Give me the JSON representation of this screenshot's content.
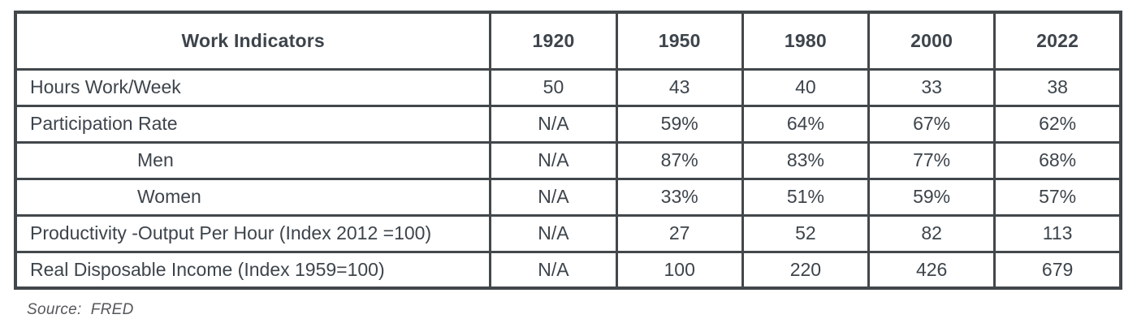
{
  "colors": {
    "text": "#3d444b",
    "border": "#42474b",
    "source_text": "#55575a",
    "background": "#ffffff"
  },
  "table": {
    "columns": [
      "Work Indicators",
      "1920",
      "1950",
      "1980",
      "2000",
      "2022"
    ],
    "rows": [
      {
        "label": "Hours Work/Week",
        "indent": false,
        "values": [
          "50",
          "43",
          "40",
          "33",
          "38"
        ]
      },
      {
        "label": "Participation Rate",
        "indent": false,
        "values": [
          "N/A",
          "59%",
          "64%",
          "67%",
          "62%"
        ]
      },
      {
        "label": "Men",
        "indent": true,
        "values": [
          "N/A",
          "87%",
          "83%",
          "77%",
          "68%"
        ]
      },
      {
        "label": "Women",
        "indent": true,
        "values": [
          "N/A",
          "33%",
          "51%",
          "59%",
          "57%"
        ]
      },
      {
        "label": "Productivity -Output Per Hour (Index 2012 =100)",
        "indent": false,
        "values": [
          "N/A",
          "27",
          "52",
          "82",
          "113"
        ]
      },
      {
        "label": "Real Disposable Income (Index 1959=100)",
        "indent": false,
        "values": [
          "N/A",
          "100",
          "220",
          "426",
          "679"
        ]
      }
    ]
  },
  "source": "Source:  FRED",
  "chart_data": {
    "type": "table",
    "title": "Work Indicators",
    "columns": [
      "Work Indicators",
      "1920",
      "1950",
      "1980",
      "2000",
      "2022"
    ],
    "rows": [
      {
        "indicator": "Hours Work/Week",
        "1920": 50,
        "1950": 43,
        "1980": 40,
        "2000": 33,
        "2022": 38
      },
      {
        "indicator": "Participation Rate",
        "1920": null,
        "1950": "59%",
        "1980": "64%",
        "2000": "67%",
        "2022": "62%"
      },
      {
        "indicator": "Participation Rate - Men",
        "1920": null,
        "1950": "87%",
        "1980": "83%",
        "2000": "77%",
        "2022": "68%"
      },
      {
        "indicator": "Participation Rate - Women",
        "1920": null,
        "1950": "33%",
        "1980": "51%",
        "2000": "59%",
        "2022": "57%"
      },
      {
        "indicator": "Productivity -Output Per Hour (Index 2012 =100)",
        "1920": null,
        "1950": 27,
        "1980": 52,
        "2000": 82,
        "2022": 113
      },
      {
        "indicator": "Real Disposable Income (Index 1959=100)",
        "1920": null,
        "1950": 100,
        "1980": 220,
        "2000": 426,
        "2022": 679
      }
    ],
    "annotations": [
      "Source:  FRED"
    ],
    "notes": "N/A shown for all 1920 values except Hours Work/Week"
  }
}
